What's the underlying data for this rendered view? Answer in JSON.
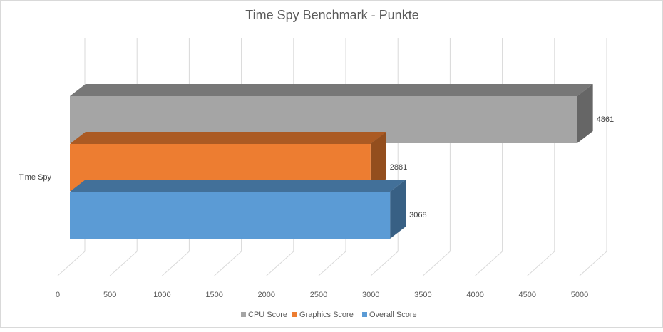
{
  "chart_data": {
    "type": "bar",
    "orientation": "horizontal",
    "style": "3d-clustered",
    "title": "Time Spy Benchmark - Punkte",
    "categories": [
      "Time Spy"
    ],
    "series": [
      {
        "name": "Overall Score",
        "values": [
          3068
        ],
        "color": "#5b9bd5"
      },
      {
        "name": "Graphics Score",
        "values": [
          2881
        ],
        "color": "#ed7d31"
      },
      {
        "name": "CPU Score",
        "values": [
          4861
        ],
        "color": "#a5a5a5"
      }
    ],
    "xlim": [
      0,
      5000
    ],
    "xticks": [
      "0",
      "500",
      "1000",
      "1500",
      "2000",
      "2500",
      "3000",
      "3500",
      "4000",
      "4500",
      "5000"
    ],
    "grid": true,
    "legend_position": "bottom",
    "legend_order": [
      "CPU Score",
      "Graphics Score",
      "Overall Score"
    ]
  }
}
